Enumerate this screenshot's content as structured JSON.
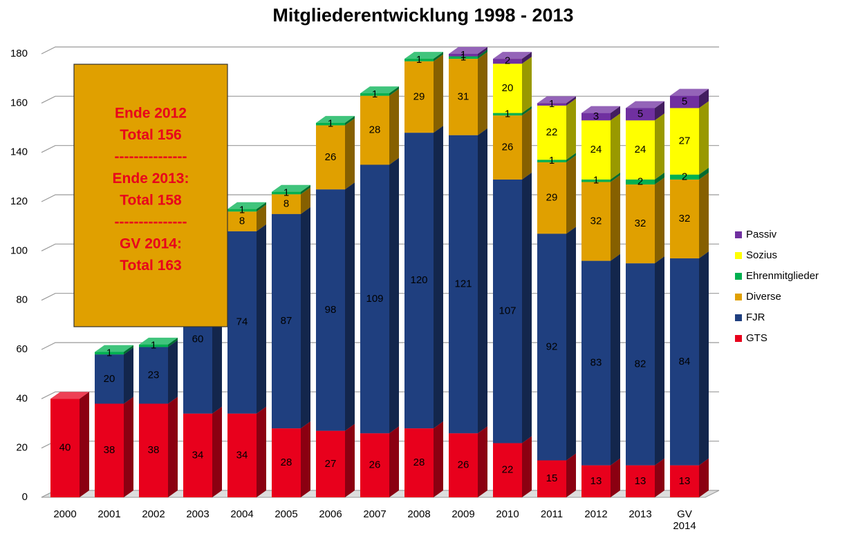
{
  "chart_data": {
    "type": "bar",
    "stacked": true,
    "title": "Mitgliederentwicklung 1998 - 2013",
    "categories": [
      "2000",
      "2001",
      "2002",
      "2003",
      "2004",
      "2005",
      "2006",
      "2007",
      "2008",
      "2009",
      "2010",
      "2011",
      "2012",
      "2013",
      "GV 2014"
    ],
    "series": [
      {
        "name": "GTS",
        "color": "#e8001c",
        "values": [
          40,
          38,
          38,
          34,
          34,
          28,
          27,
          26,
          28,
          26,
          22,
          15,
          13,
          13,
          13
        ]
      },
      {
        "name": "FJR",
        "color": "#1f3f7f",
        "values": [
          null,
          20,
          23,
          60,
          74,
          87,
          98,
          109,
          120,
          121,
          107,
          92,
          83,
          82,
          84
        ]
      },
      {
        "name": "Diverse",
        "color": "#e0a000",
        "values": [
          null,
          null,
          null,
          null,
          8,
          8,
          26,
          28,
          29,
          31,
          26,
          29,
          32,
          32,
          32
        ]
      },
      {
        "name": "Ehrenmitglieder",
        "color": "#00b050",
        "values": [
          null,
          1,
          1,
          1,
          1,
          1,
          1,
          1,
          1,
          1,
          1,
          1,
          1,
          2,
          2
        ]
      },
      {
        "name": "Sozius",
        "color": "#ffff00",
        "values": [
          null,
          null,
          null,
          null,
          null,
          null,
          null,
          null,
          null,
          null,
          20,
          22,
          24,
          24,
          27
        ]
      },
      {
        "name": "Passiv",
        "color": "#7030a0",
        "values": [
          null,
          null,
          null,
          null,
          null,
          null,
          null,
          null,
          null,
          1,
          2,
          1,
          3,
          5,
          5
        ]
      }
    ],
    "ylim": [
      0,
      180
    ],
    "yticks": [
      0,
      20,
      40,
      60,
      80,
      100,
      120,
      140,
      160,
      180
    ],
    "grid": true,
    "legend": "right",
    "annotation": {
      "lines": [
        "Ende 2012",
        "Total 156",
        "---------------",
        "Ende 2013:",
        "Total 158",
        "---------------",
        "GV 2014:",
        "Total 163"
      ],
      "color": "#e8001c",
      "background": "#e0a000"
    }
  }
}
